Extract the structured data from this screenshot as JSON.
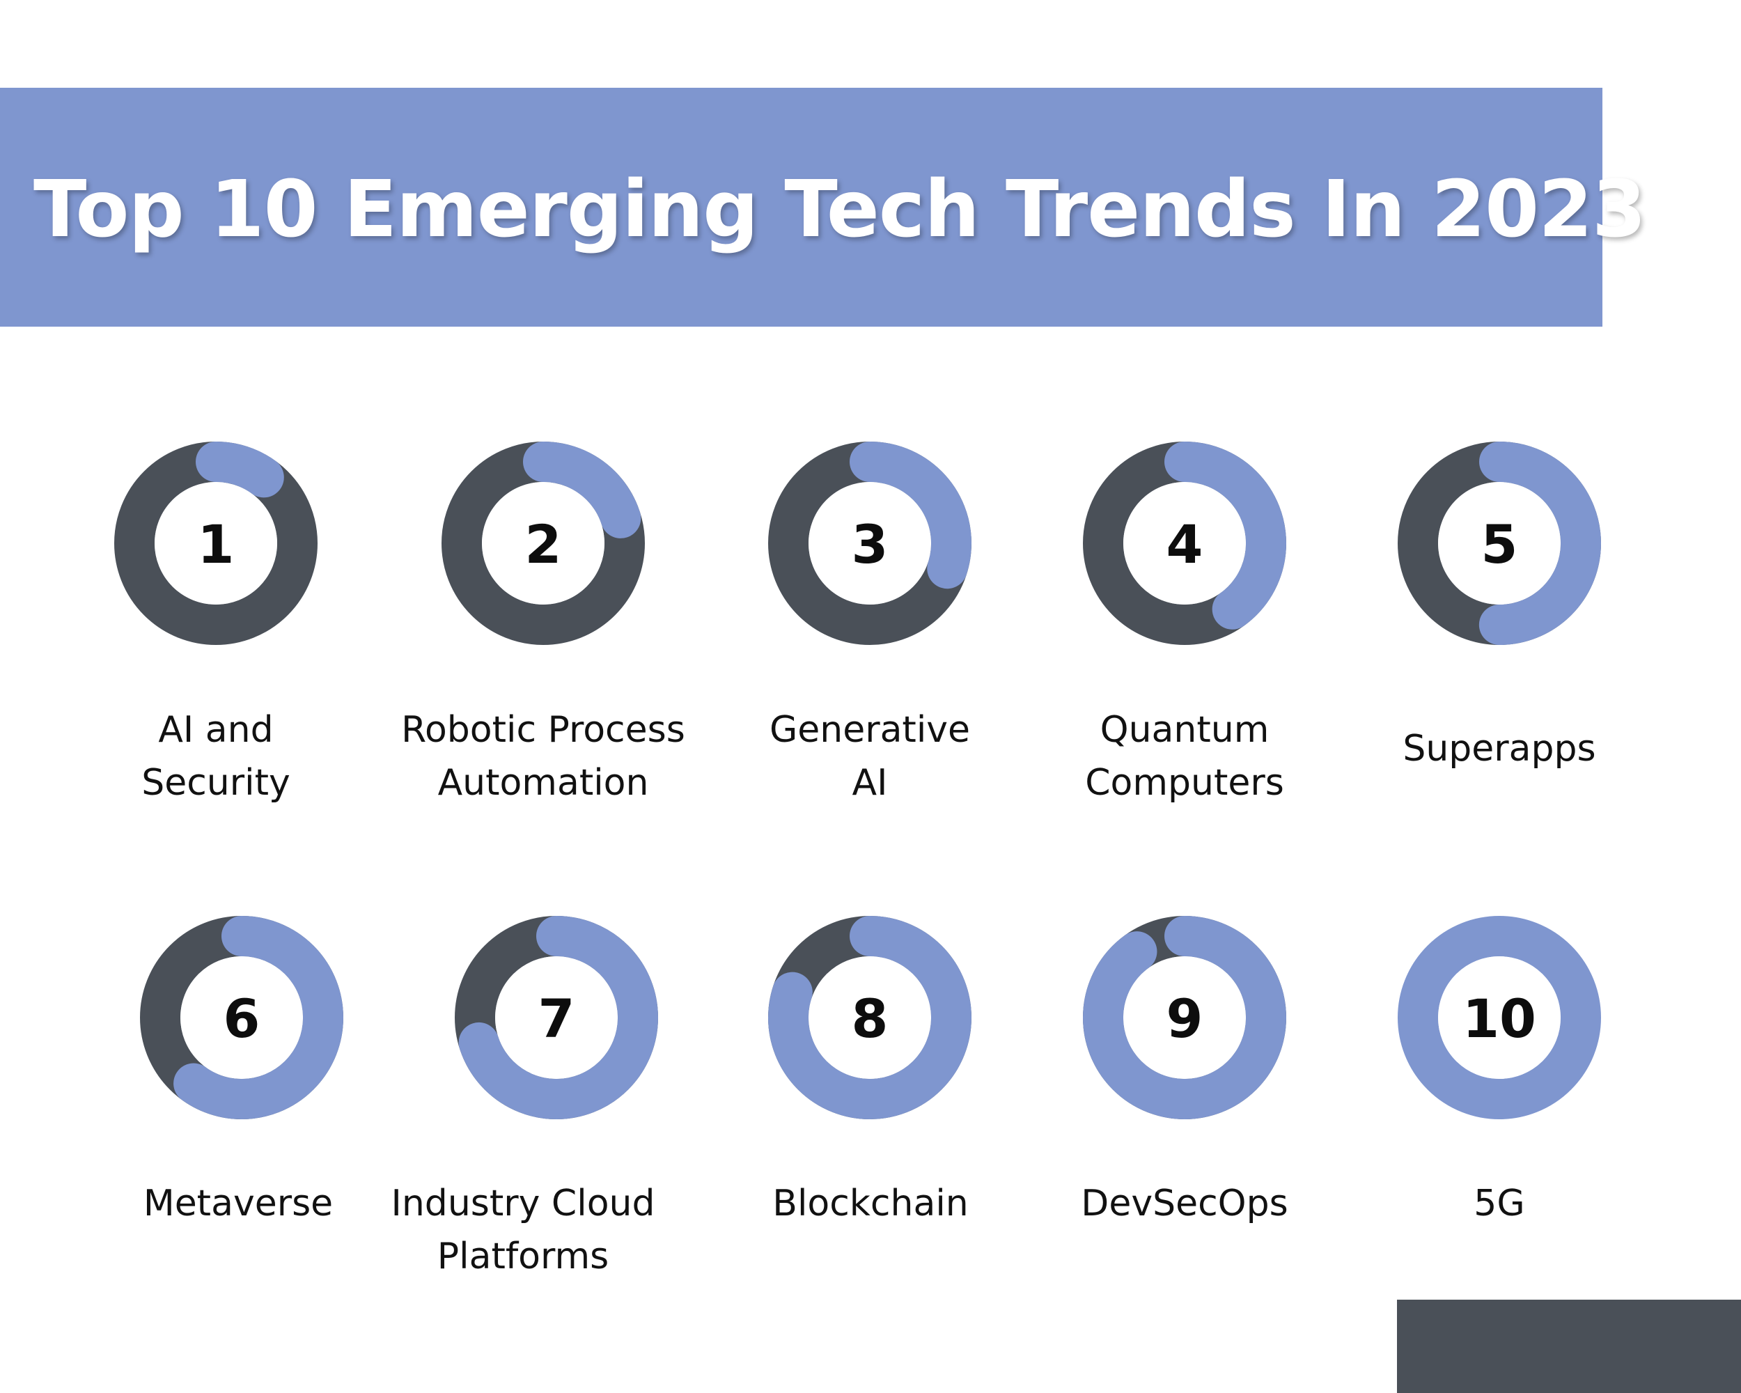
{
  "title": "Top 10 Emerging Tech Trends In 2023",
  "colors": {
    "banner": "#7f96cf",
    "ring_track": "#4a5058",
    "ring_progress": "#7f96cf",
    "ring_center": "#ffffff",
    "text": "#111111",
    "corner_block": "#4a5058"
  },
  "trends": [
    {
      "rank": "1",
      "label": "AI and\nSecurity",
      "progress": 0.1
    },
    {
      "rank": "2",
      "label": "Robotic Process\nAutomation",
      "progress": 0.2
    },
    {
      "rank": "3",
      "label": "Generative\nAI",
      "progress": 0.3
    },
    {
      "rank": "4",
      "label": "Quantum\nComputers",
      "progress": 0.4
    },
    {
      "rank": "5",
      "label": "Superapps",
      "progress": 0.5
    },
    {
      "rank": "6",
      "label": "Metaverse",
      "progress": 0.6
    },
    {
      "rank": "7",
      "label": "Industry Cloud\nPlatforms",
      "progress": 0.7
    },
    {
      "rank": "8",
      "label": "Blockchain",
      "progress": 0.8
    },
    {
      "rank": "9",
      "label": "DevSecOps",
      "progress": 0.9
    },
    {
      "rank": "10",
      "label": "5G",
      "progress": 1.0
    }
  ]
}
